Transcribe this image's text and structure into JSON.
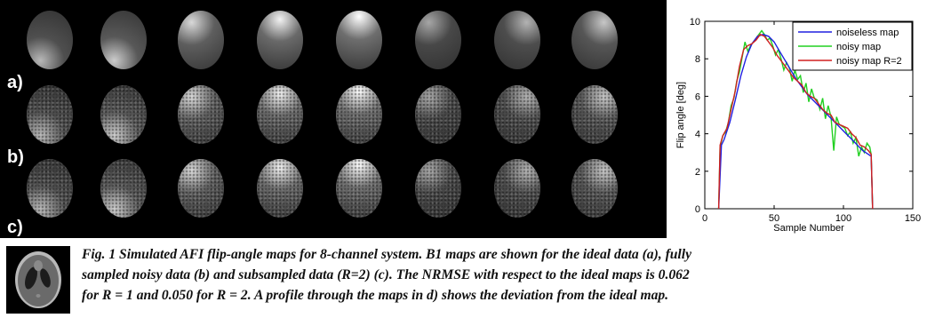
{
  "figure": {
    "row_labels": [
      "a)",
      "b)",
      "c)"
    ],
    "channels": 8,
    "map_rows": [
      {
        "row": "a)",
        "description_id": "ideal",
        "bright_spot": [
          "bottom-left",
          "bottom-left",
          "top-left",
          "top-center",
          "top",
          "top-left",
          "top-right",
          "top-right"
        ]
      },
      {
        "row": "b)",
        "description_id": "noisy",
        "bright_spot": [
          "bottom-left",
          "bottom-left",
          "top-left",
          "top-center",
          "top",
          "top-left",
          "top-right",
          "top-right"
        ]
      },
      {
        "row": "c)",
        "description_id": "subsampled",
        "bright_spot": [
          "bottom-left",
          "bottom-left",
          "top-left",
          "top-center",
          "top",
          "top-left",
          "top-right",
          "top-right"
        ]
      }
    ]
  },
  "chart_data": {
    "type": "line",
    "xlabel": "Sample Number",
    "ylabel": "Flip angle [deg]",
    "xlim": [
      0,
      150
    ],
    "ylim": [
      0,
      10
    ],
    "xticks": [
      0,
      50,
      100,
      150
    ],
    "yticks": [
      0,
      2,
      4,
      6,
      8,
      10
    ],
    "legend_position": "top-right",
    "series": [
      {
        "name": "noiseless map",
        "color": "#2020e0",
        "x": [
          10,
          12,
          14,
          18,
          22,
          26,
          30,
          34,
          38,
          42,
          46,
          50,
          54,
          58,
          62,
          66,
          70,
          74,
          78,
          82,
          86,
          90,
          94,
          98,
          102,
          106,
          110,
          114,
          118,
          120,
          121
        ],
        "y": [
          0,
          3.4,
          3.7,
          4.6,
          5.8,
          7.1,
          8.1,
          8.8,
          9.2,
          9.3,
          9.2,
          8.9,
          8.4,
          7.9,
          7.4,
          6.9,
          6.5,
          6.1,
          5.8,
          5.5,
          5.2,
          4.9,
          4.6,
          4.3,
          4.0,
          3.7,
          3.4,
          3.1,
          2.9,
          2.8,
          0
        ]
      },
      {
        "name": "noisy map",
        "color": "#20d020",
        "x": [
          10,
          11,
          13,
          15,
          17,
          19,
          21,
          23,
          25,
          27,
          29,
          31,
          33,
          35,
          37,
          39,
          41,
          43,
          45,
          47,
          49,
          51,
          53,
          55,
          57,
          59,
          61,
          63,
          65,
          67,
          69,
          71,
          73,
          75,
          77,
          79,
          81,
          83,
          85,
          87,
          89,
          91,
          93,
          95,
          97,
          99,
          101,
          103,
          105,
          107,
          109,
          111,
          113,
          115,
          117,
          119,
          120,
          121
        ],
        "y": [
          0,
          3.3,
          3.9,
          4.1,
          4.6,
          5.5,
          5.9,
          6.8,
          7.3,
          8.1,
          8.9,
          8.4,
          8.7,
          8.9,
          9.1,
          9.3,
          9.5,
          9.3,
          9.0,
          9.1,
          8.7,
          8.2,
          8.5,
          8.0,
          7.4,
          7.8,
          7.5,
          6.8,
          7.4,
          6.9,
          7.1,
          6.2,
          6.7,
          5.7,
          6.4,
          5.9,
          5.8,
          5.3,
          5.9,
          4.8,
          5.5,
          4.9,
          3.1,
          4.9,
          4.5,
          4.4,
          4.3,
          3.9,
          4.1,
          3.5,
          3.8,
          2.8,
          3.3,
          3.0,
          3.5,
          3.3,
          2.9,
          0
        ]
      },
      {
        "name": "noisy map R=2",
        "color": "#d02020",
        "x": [
          10,
          11,
          13,
          16,
          19,
          22,
          25,
          28,
          31,
          34,
          37,
          40,
          43,
          46,
          49,
          52,
          55,
          58,
          61,
          64,
          67,
          70,
          73,
          76,
          79,
          82,
          85,
          88,
          91,
          94,
          97,
          100,
          103,
          106,
          109,
          112,
          115,
          118,
          120,
          121
        ],
        "y": [
          0,
          3.4,
          3.9,
          4.3,
          5.3,
          6.3,
          7.6,
          8.5,
          8.7,
          8.8,
          9.0,
          9.3,
          9.2,
          8.9,
          8.6,
          8.2,
          7.9,
          7.6,
          7.3,
          7.0,
          6.8,
          6.6,
          6.2,
          6.0,
          5.9,
          5.6,
          5.3,
          5.1,
          5.0,
          4.6,
          4.5,
          4.4,
          4.3,
          4.0,
          3.8,
          3.4,
          3.3,
          3.1,
          2.9,
          0
        ]
      }
    ]
  },
  "caption": {
    "line1": "Fig. 1 Simulated AFI flip-angle maps for 8-channel system.  B1 maps are shown for the ideal data (a), fully",
    "line2": "sampled noisy data (b) and subsampled data (R=2) (c). The NRMSE with respect to the ideal maps is 0.062",
    "line3": "for R = 1 and 0.050 for R = 2. A profile through the maps  in d) shows the deviation from the ideal map."
  }
}
